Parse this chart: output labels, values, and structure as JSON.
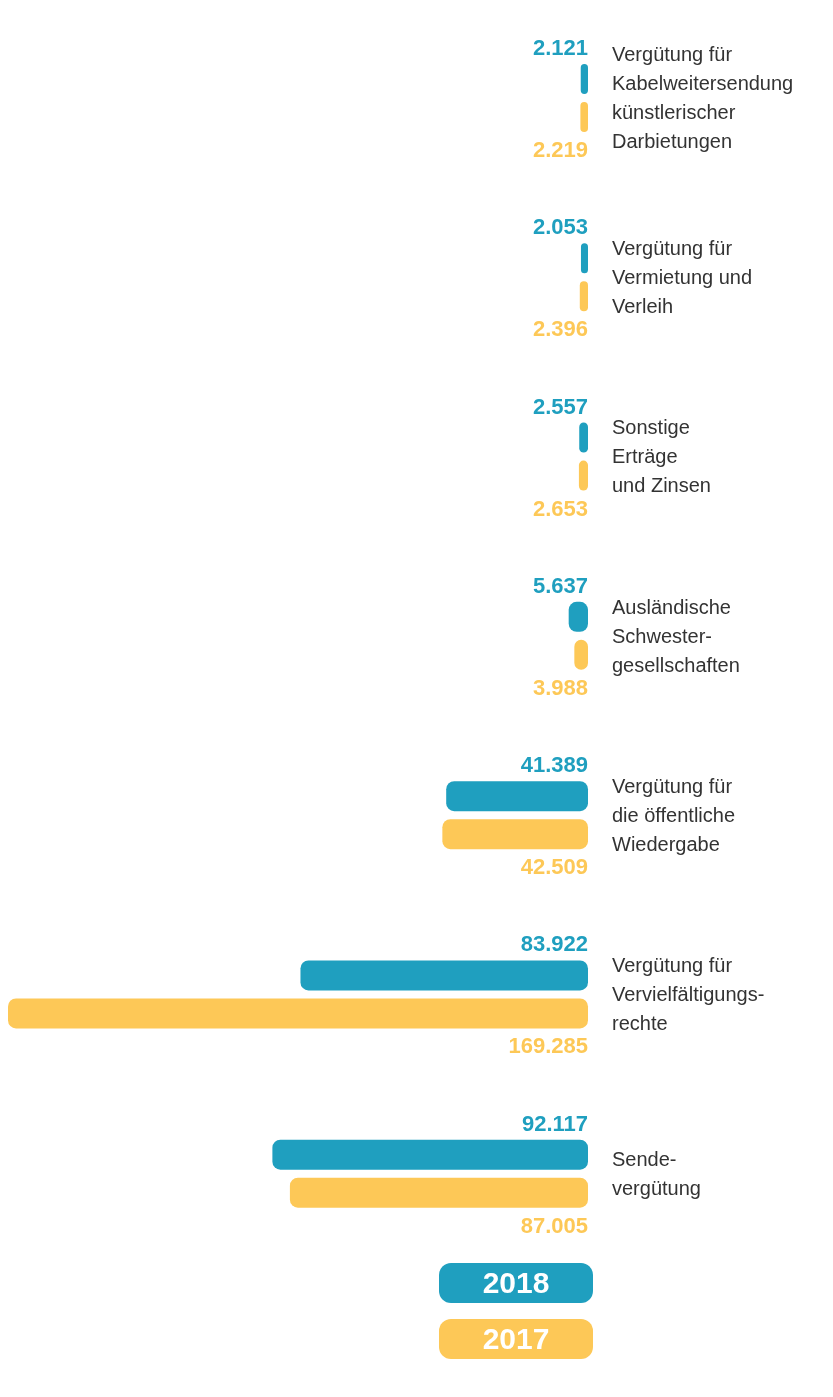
{
  "chart_data": {
    "type": "bar",
    "orientation": "horizontal",
    "categories": [
      "Vergütung für\nKabelweitersendung\nkünstlerischer\nDarbietungen",
      "Vergütung für\nVermietung und\nVerleih",
      "Sonstige\nErträge\nund Zinsen",
      "Ausländische\nSchwester-\ngesellschaften",
      "Vergütung für\ndie öffentliche\nWiedergabe",
      "Vergütung für\nVervielfältigungs-\nrechte",
      "Sende-\nvergütung"
    ],
    "series": [
      {
        "name": "2018",
        "color": "#1f9fbf",
        "values": [
          2121,
          2053,
          2557,
          5637,
          41389,
          83922,
          92117
        ],
        "value_labels": [
          "2.121",
          "2.053",
          "2.557",
          "5.637",
          "41.389",
          "83.922",
          "92.117"
        ]
      },
      {
        "name": "2017",
        "color": "#fdc857",
        "values": [
          2219,
          2396,
          2653,
          3988,
          42509,
          169285,
          87005
        ],
        "value_labels": [
          "2.219",
          "2.396",
          "2.653",
          "3.988",
          "42.509",
          "169.285",
          "87.005"
        ]
      }
    ],
    "legend": "bottom"
  }
}
